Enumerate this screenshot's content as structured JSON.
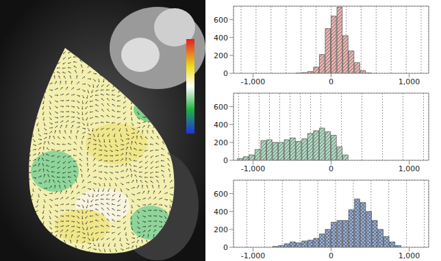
{
  "chart_data": [
    {
      "type": "histogram",
      "color": "#e8b4b0",
      "bins": [
        -450,
        -375,
        -300,
        -225,
        -150,
        -75,
        0,
        75,
        150,
        225,
        300,
        375,
        450,
        525
      ],
      "values": [
        3,
        8,
        20,
        70,
        210,
        500,
        640,
        740,
        420,
        250,
        120,
        30,
        5
      ],
      "xlim": [
        -1250,
        1250
      ],
      "xticks": [
        {
          "value": -1000,
          "label": "-1,000"
        },
        0,
        {
          "value": 1000,
          "label": "1,000"
        }
      ],
      "ylim": [
        0,
        750
      ],
      "yticks": [
        0,
        200,
        400,
        600
      ],
      "grid": true
    },
    {
      "type": "histogram",
      "color": "#b0d8c0",
      "bins": [
        -1200,
        -1125,
        -1050,
        -975,
        -900,
        -825,
        -750,
        -675,
        -600,
        -525,
        -450,
        -375,
        -300,
        -225,
        -150,
        -75,
        0,
        75,
        150,
        225
      ],
      "values": [
        20,
        40,
        60,
        120,
        220,
        230,
        200,
        200,
        230,
        250,
        210,
        240,
        300,
        330,
        360,
        320,
        280,
        150,
        60
      ],
      "xlim": [
        -1250,
        1250
      ],
      "xticks": [
        {
          "value": -1000,
          "label": "-1,000"
        },
        0,
        {
          "value": 1000,
          "label": "1,000"
        }
      ],
      "ylim": [
        0,
        750
      ],
      "yticks": [
        0,
        200,
        400,
        600
      ],
      "grid": true
    },
    {
      "type": "histogram",
      "color": "#9ab0d8",
      "bins": [
        -750,
        -675,
        -600,
        -525,
        -450,
        -375,
        -300,
        -225,
        -150,
        -75,
        0,
        75,
        150,
        225,
        300,
        375,
        450,
        525,
        600,
        675,
        750,
        825,
        900
      ],
      "values": [
        10,
        20,
        40,
        60,
        50,
        70,
        80,
        100,
        150,
        200,
        280,
        300,
        300,
        420,
        540,
        500,
        400,
        300,
        200,
        120,
        60,
        20
      ],
      "xlim": [
        -1250,
        1250
      ],
      "xticks": [
        {
          "value": -1000,
          "label": "-1,000"
        },
        0,
        {
          "value": 1000,
          "label": "1,000"
        }
      ],
      "ylim": [
        0,
        750
      ],
      "yticks": [
        0,
        200,
        400,
        600
      ],
      "grid": true
    }
  ]
}
